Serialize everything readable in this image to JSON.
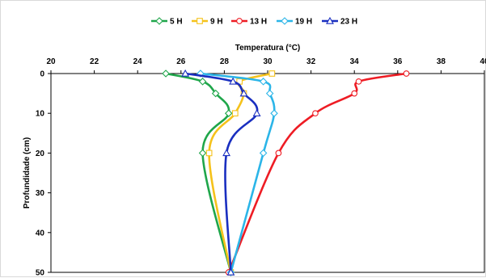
{
  "chart_data": {
    "type": "line",
    "title": "",
    "xlabel": "Temperatura (°C)",
    "ylabel": "Profundidade (cm)",
    "xlim": [
      20,
      40
    ],
    "ylim": [
      0,
      50
    ],
    "y_inverted": true,
    "x_axis_position": "top",
    "x_ticks": [
      20,
      22,
      24,
      26,
      28,
      30,
      32,
      34,
      36,
      38,
      40
    ],
    "y_ticks": [
      0,
      10,
      20,
      30,
      40,
      50
    ],
    "grid": false,
    "legend_position": "top-center",
    "series": [
      {
        "name": "5 H",
        "color": "#1fa64a",
        "marker": "diamond",
        "points": [
          [
            25.3,
            0
          ],
          [
            27.0,
            2
          ],
          [
            27.6,
            5
          ],
          [
            28.2,
            10
          ],
          [
            27.0,
            20
          ],
          [
            28.3,
            50
          ]
        ]
      },
      {
        "name": "9 H",
        "color": "#f5c21b",
        "marker": "square",
        "points": [
          [
            30.2,
            0
          ],
          [
            28.7,
            2
          ],
          [
            28.9,
            5
          ],
          [
            28.5,
            10
          ],
          [
            27.3,
            20
          ],
          [
            28.3,
            50
          ]
        ]
      },
      {
        "name": "13 H",
        "color": "#ee1c24",
        "marker": "circle",
        "points": [
          [
            36.4,
            0
          ],
          [
            34.2,
            2
          ],
          [
            34.0,
            5
          ],
          [
            32.2,
            10
          ],
          [
            30.5,
            20
          ],
          [
            28.2,
            50
          ]
        ]
      },
      {
        "name": "19 H",
        "color": "#2bb5e8",
        "marker": "diamond",
        "points": [
          [
            26.9,
            0
          ],
          [
            29.8,
            2
          ],
          [
            30.1,
            5
          ],
          [
            30.3,
            10
          ],
          [
            29.8,
            20
          ],
          [
            28.3,
            50
          ]
        ]
      },
      {
        "name": "23 H",
        "color": "#1a2fc0",
        "marker": "triangle",
        "points": [
          [
            26.2,
            0
          ],
          [
            28.4,
            2
          ],
          [
            28.9,
            5
          ],
          [
            29.5,
            10
          ],
          [
            28.1,
            20
          ],
          [
            28.3,
            50
          ]
        ]
      }
    ]
  }
}
